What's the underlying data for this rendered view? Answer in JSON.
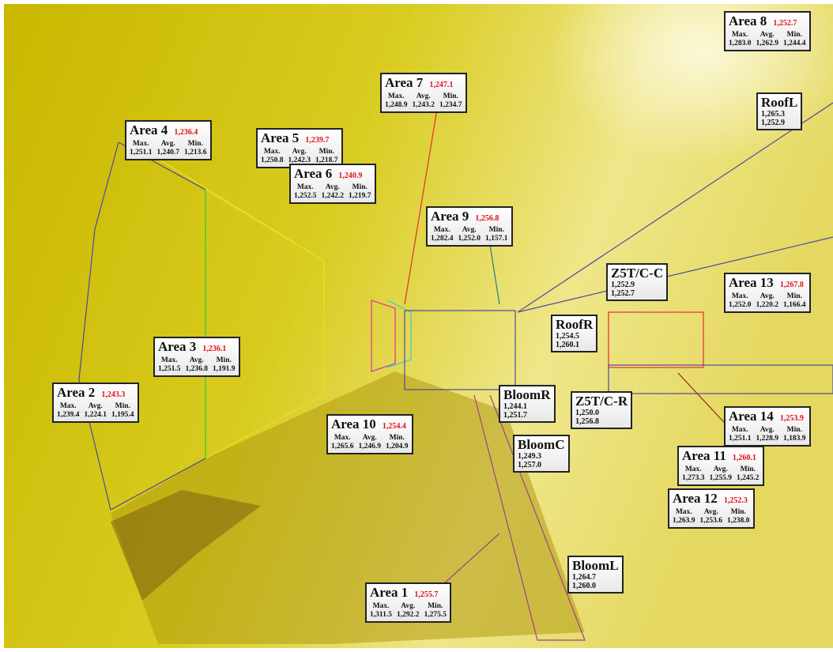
{
  "labels": {
    "max": "Max.",
    "avg": "Avg.",
    "min": "Min."
  },
  "areas": [
    {
      "name": "Area 8",
      "current": "1,252.7",
      "max": "1,283.0",
      "avg": "1,262.9",
      "min": "1,244.4"
    },
    {
      "name": "Area 7",
      "current": "1,247.1",
      "max": "1,248.9",
      "avg": "1,243.2",
      "min": "1,234.7"
    },
    {
      "name": "Area 4",
      "current": "1,236.4",
      "max": "1,251.1",
      "avg": "1,240.7",
      "min": "1,213.6"
    },
    {
      "name": "Area 5",
      "current": "1,239.7",
      "max": "1,250.8",
      "avg": "1,242.3",
      "min": "1,218.7"
    },
    {
      "name": "Area 6",
      "current": "1,240.9",
      "max": "1,252.5",
      "avg": "1,242.2",
      "min": "1,219.7"
    },
    {
      "name": "Area 9",
      "current": "1,256.8",
      "max": "1,282.4",
      "avg": "1,252.0",
      "min": "1,157.1"
    },
    {
      "name": "Area 13",
      "current": "1,267.8",
      "max": "1,252.0",
      "avg": "1,220.2",
      "min": "1,166.4"
    },
    {
      "name": "Area 3",
      "current": "1,236.1",
      "max": "1,251.5",
      "avg": "1,236.8",
      "min": "1,191.9"
    },
    {
      "name": "Area 2",
      "current": "1,243.3",
      "max": "1,239.4",
      "avg": "1,224.1",
      "min": "1,195.4"
    },
    {
      "name": "Area 10",
      "current": "1,254.4",
      "max": "1,265.6",
      "avg": "1,246.9",
      "min": "1,204.9"
    },
    {
      "name": "Area 14",
      "current": "1,253.9",
      "max": "1,251.1",
      "avg": "1,228.9",
      "min": "1,183.9"
    },
    {
      "name": "Area 11",
      "current": "1,260.1",
      "max": "1,273.3",
      "avg": "1,255.9",
      "min": "1,245.2"
    },
    {
      "name": "Area 12",
      "current": "1,252.3",
      "max": "1,263.9",
      "avg": "1,253.6",
      "min": "1,238.0"
    },
    {
      "name": "Area 1",
      "current": "1,255.7",
      "max": "1,311.5",
      "avg": "1,292.2",
      "min": "1,275.5"
    }
  ],
  "points": [
    {
      "name": "RoofL",
      "value": "1,265.3",
      "current": "1,252.9"
    },
    {
      "name": "Z5T/C-C",
      "value": "1,252.9",
      "current": "1,252.7"
    },
    {
      "name": "RoofR",
      "value": "1,254.5",
      "current": "1,260.1"
    },
    {
      "name": "BloomR",
      "value": "1,244.1",
      "current": "1,251.7"
    },
    {
      "name": "Z5T/C-R",
      "value": "1,250.0",
      "current": "1,256.8"
    },
    {
      "name": "BloomC",
      "value": "1,249.3",
      "current": "1,257.0"
    },
    {
      "name": "BloomL",
      "value": "1,264.7",
      "current": "1,260.0"
    }
  ]
}
